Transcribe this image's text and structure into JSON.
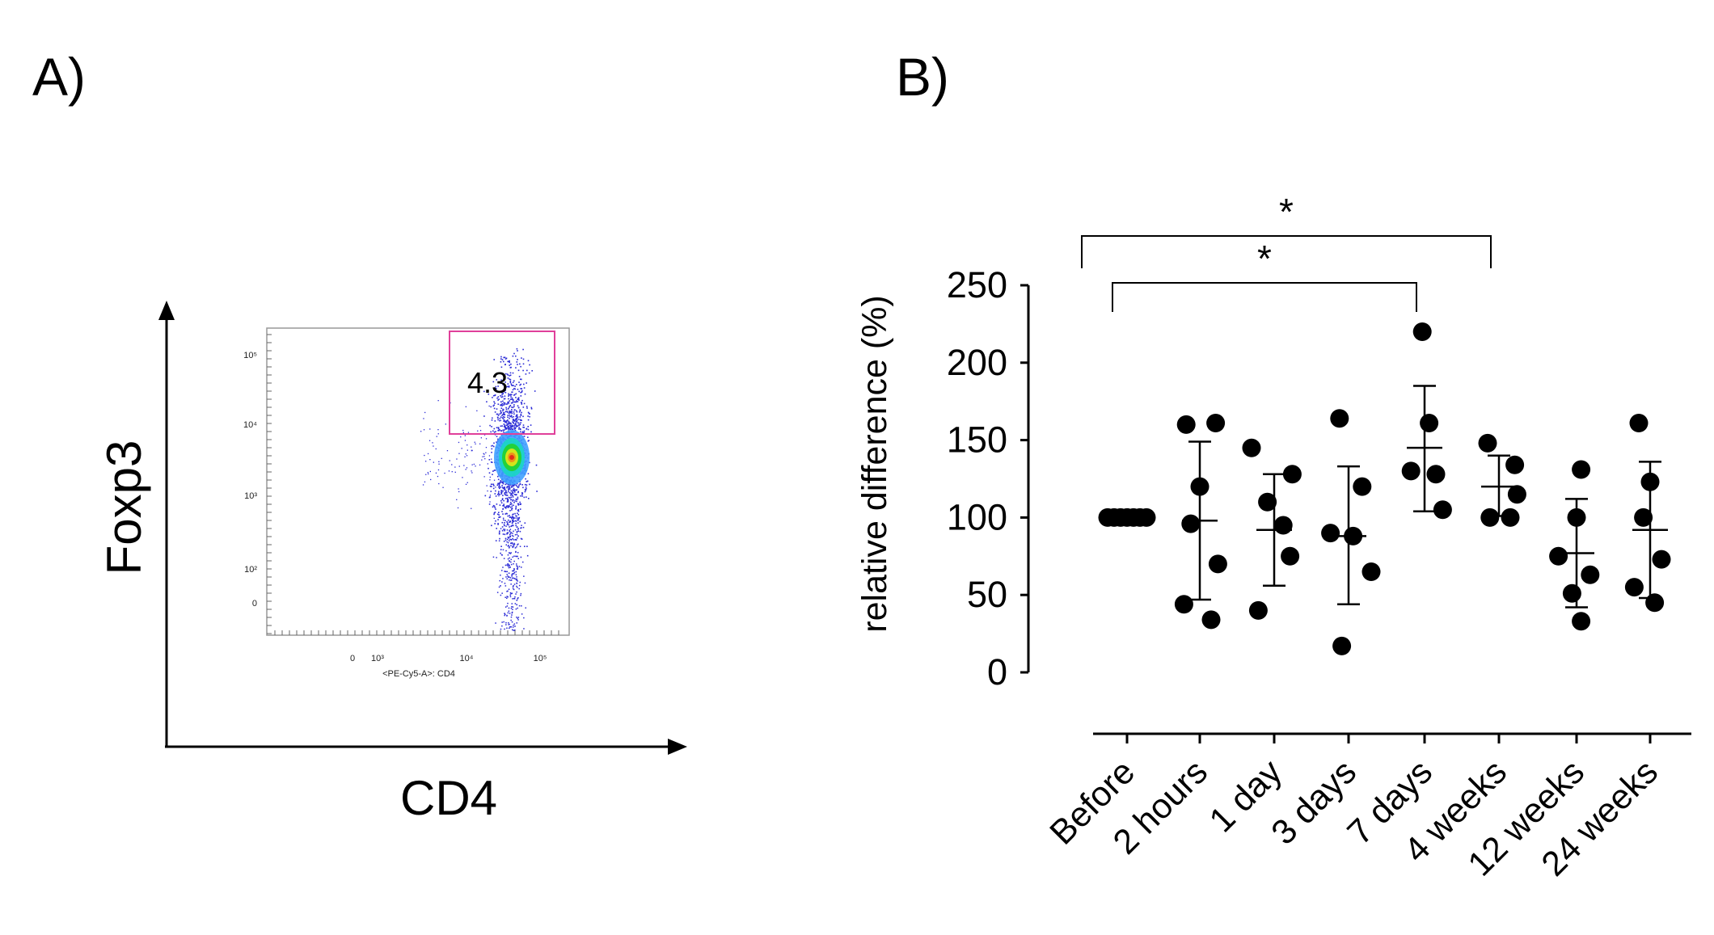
{
  "panels": {
    "a": {
      "label": "A)",
      "flow": {
        "x_axis_label": "CD4",
        "y_axis_label": "Foxp3",
        "instrument_x_label": "<PE-Cy5-A>: CD4",
        "x_ticks": [
          "0",
          "10³",
          "10⁴",
          "10⁵"
        ],
        "y_ticks": [
          "10⁵",
          "10⁴",
          "10³",
          "10²",
          "0"
        ],
        "gate_value": "4.3",
        "gate_color": "#e0409a",
        "dot_color": "#2b2bd6"
      }
    },
    "b": {
      "label": "B)"
    }
  },
  "chart_data": {
    "type": "scatter",
    "ylabel": "relative difference (%)",
    "ylim": [
      0,
      250
    ],
    "yticks": [
      0,
      50,
      100,
      150,
      200,
      250
    ],
    "categories": [
      "Before",
      "2 hours",
      "1 day",
      "3 days",
      "7 days",
      "4 weeks",
      "12 weeks",
      "24 weeks"
    ],
    "points": [
      [
        100,
        100,
        100,
        100,
        100,
        100,
        100
      ],
      [
        160,
        161,
        120,
        96,
        70,
        44,
        34
      ],
      [
        145,
        128,
        110,
        95,
        75,
        40
      ],
      [
        164,
        120,
        90,
        88,
        65,
        17
      ],
      [
        220,
        161,
        130,
        128,
        105
      ],
      [
        148,
        134,
        115,
        100,
        100
      ],
      [
        131,
        100,
        75,
        63,
        51,
        33
      ],
      [
        161,
        123,
        100,
        73,
        55,
        45
      ]
    ],
    "mean": [
      100,
      98,
      92,
      88,
      145,
      120,
      77,
      92
    ],
    "sd_upper": [
      100,
      149,
      128,
      133,
      185,
      140,
      112,
      136
    ],
    "sd_lower": [
      100,
      47,
      56,
      44,
      104,
      101,
      42,
      48
    ],
    "significance": [
      {
        "from": "Before",
        "to": "4 weeks",
        "label": "*"
      },
      {
        "from": "Before",
        "to": "7 days",
        "label": "*"
      }
    ],
    "point_color": "#000000"
  }
}
